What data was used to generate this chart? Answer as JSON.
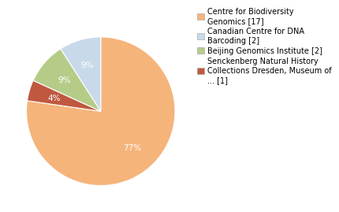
{
  "labels": [
    "Centre for Biodiversity\nGenomics [17]",
    "Canadian Centre for DNA\nBarcoding [2]",
    "Beijing Genomics Institute [2]",
    "Senckenberg Natural History\nCollections Dresden, Museum of\n... [1]"
  ],
  "values": [
    17,
    2,
    2,
    1
  ],
  "colors": [
    "#f5b47a",
    "#c8daea",
    "#b5cc88",
    "#c05840"
  ],
  "pct_labels": [
    "77%",
    "9%",
    "9%",
    "4%"
  ],
  "wedge_order": [
    0,
    3,
    2,
    1
  ],
  "pct_fontsize": 7.5,
  "legend_fontsize": 7.0,
  "background_color": "#ffffff"
}
